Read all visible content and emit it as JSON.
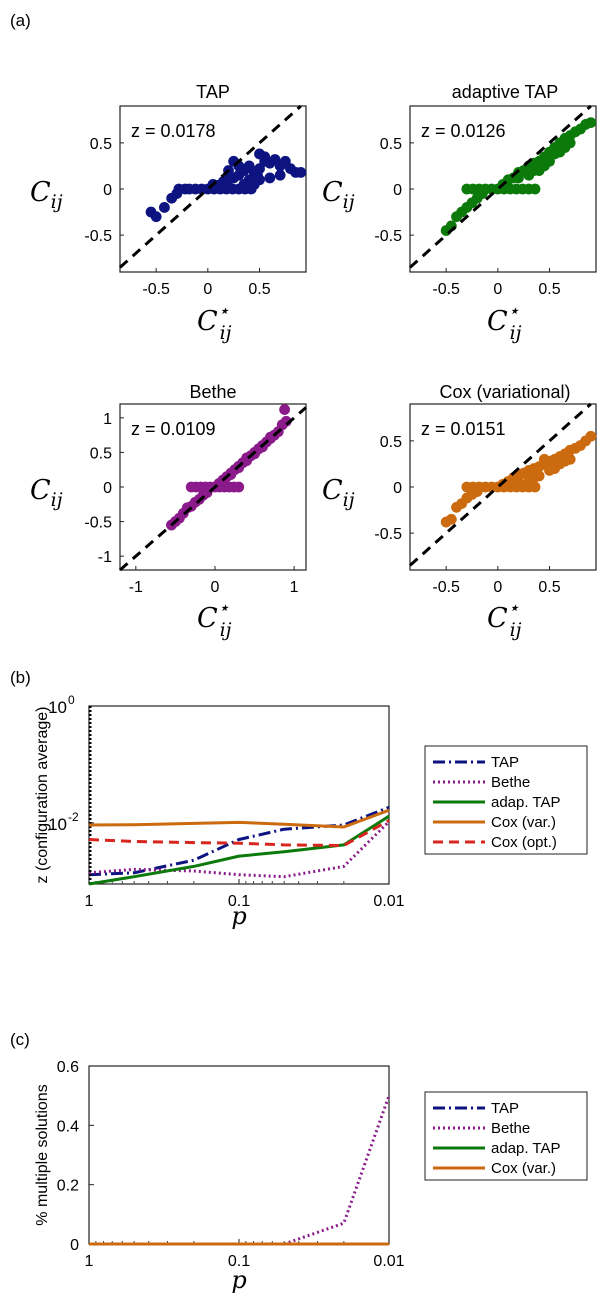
{
  "panel_labels": [
    "(a)",
    "(b)",
    "(c)"
  ],
  "colors": {
    "TAP": "#0d1380",
    "Bethe": "#8b1a8b",
    "adap. TAP": "#0b7a0b",
    "Cox (var.)": "#cc6a0f",
    "Cox (opt.)": "#d8261f"
  },
  "chart_data": [
    {
      "type": "scatter",
      "panel": "a",
      "title": "TAP",
      "annotation": "z = 0.0178",
      "xlabel": "C*ij",
      "ylabel": "Cij",
      "xlim": [
        -0.85,
        0.95
      ],
      "ylim": [
        -0.9,
        0.9
      ],
      "xticks": [
        -0.5,
        0,
        0.5
      ],
      "yticks": [
        -0.5,
        0,
        0.5
      ],
      "color": "#0d1380",
      "points": [
        [
          -0.55,
          -0.25
        ],
        [
          -0.5,
          -0.3
        ],
        [
          -0.42,
          -0.2
        ],
        [
          -0.35,
          -0.1
        ],
        [
          -0.3,
          -0.05
        ],
        [
          -0.28,
          0
        ],
        [
          -0.22,
          0
        ],
        [
          -0.18,
          0
        ],
        [
          -0.12,
          0
        ],
        [
          -0.06,
          0
        ],
        [
          0,
          0
        ],
        [
          0.06,
          0
        ],
        [
          0.12,
          0
        ],
        [
          0.18,
          0
        ],
        [
          0.24,
          0
        ],
        [
          0.3,
          0
        ],
        [
          0.36,
          0
        ],
        [
          0.42,
          0
        ],
        [
          0.05,
          0.05
        ],
        [
          0.1,
          0.04
        ],
        [
          0.15,
          0.08
        ],
        [
          0.2,
          0.1
        ],
        [
          0.25,
          0.12
        ],
        [
          0.3,
          0.15
        ],
        [
          0.35,
          0.2
        ],
        [
          0.4,
          0.25
        ],
        [
          0.45,
          0.18
        ],
        [
          0.5,
          0.22
        ],
        [
          0.55,
          0.3
        ],
        [
          0.6,
          0.28
        ],
        [
          0.65,
          0.32
        ],
        [
          0.7,
          0.25
        ],
        [
          0.75,
          0.3
        ],
        [
          0.8,
          0.22
        ],
        [
          0.85,
          0.18
        ],
        [
          0.9,
          0.18
        ],
        [
          0.5,
          0.38
        ],
        [
          0.55,
          0.35
        ],
        [
          0.25,
          0.3
        ],
        [
          0.3,
          0.25
        ],
        [
          0.45,
          0.05
        ],
        [
          0.5,
          0.1
        ],
        [
          0.6,
          0.12
        ],
        [
          0.7,
          0.15
        ],
        [
          0.4,
          0.1
        ],
        [
          0.2,
          0.2
        ],
        [
          0.35,
          0.05
        ],
        [
          0.48,
          0.15
        ]
      ]
    },
    {
      "type": "scatter",
      "panel": "a",
      "title": "adaptive TAP",
      "annotation": "z = 0.0126",
      "xlabel": "C*ij",
      "ylabel": "Cij",
      "xlim": [
        -0.85,
        0.95
      ],
      "ylim": [
        -0.9,
        0.9
      ],
      "xticks": [
        -0.5,
        0,
        0.5
      ],
      "yticks": [
        -0.5,
        0,
        0.5
      ],
      "color": "#0b7a0b",
      "points": [
        [
          -0.5,
          -0.45
        ],
        [
          -0.45,
          -0.4
        ],
        [
          -0.4,
          -0.3
        ],
        [
          -0.35,
          -0.25
        ],
        [
          -0.3,
          -0.2
        ],
        [
          -0.25,
          -0.15
        ],
        [
          -0.2,
          -0.1
        ],
        [
          -0.15,
          -0.05
        ],
        [
          -0.3,
          0
        ],
        [
          -0.24,
          0
        ],
        [
          -0.18,
          0
        ],
        [
          -0.12,
          0
        ],
        [
          -0.06,
          0
        ],
        [
          0,
          0
        ],
        [
          0.06,
          0
        ],
        [
          0.12,
          0
        ],
        [
          0.18,
          0
        ],
        [
          0.24,
          0
        ],
        [
          0.3,
          0
        ],
        [
          0.36,
          0
        ],
        [
          0.05,
          0.05
        ],
        [
          0.1,
          0.1
        ],
        [
          0.15,
          0.12
        ],
        [
          0.2,
          0.18
        ],
        [
          0.25,
          0.2
        ],
        [
          0.3,
          0.25
        ],
        [
          0.35,
          0.28
        ],
        [
          0.4,
          0.3
        ],
        [
          0.45,
          0.35
        ],
        [
          0.5,
          0.4
        ],
        [
          0.55,
          0.45
        ],
        [
          0.6,
          0.5
        ],
        [
          0.65,
          0.55
        ],
        [
          0.7,
          0.58
        ],
        [
          0.75,
          0.62
        ],
        [
          0.8,
          0.65
        ],
        [
          0.85,
          0.7
        ],
        [
          0.9,
          0.72
        ],
        [
          0.4,
          0.2
        ],
        [
          0.5,
          0.3
        ],
        [
          0.6,
          0.4
        ],
        [
          0.3,
          0.15
        ],
        [
          0.45,
          0.25
        ],
        [
          0.55,
          0.38
        ],
        [
          0.7,
          0.5
        ],
        [
          0.2,
          0.12
        ],
        [
          0.35,
          0.2
        ],
        [
          0.65,
          0.45
        ]
      ]
    },
    {
      "type": "scatter",
      "panel": "a",
      "title": "Bethe",
      "annotation": "z = 0.0109",
      "xlabel": "C*ij",
      "ylabel": "Cij",
      "xlim": [
        -1.2,
        1.15
      ],
      "ylim": [
        -1.2,
        1.2
      ],
      "xticks": [
        -1,
        0,
        1
      ],
      "yticks": [
        -1,
        -0.5,
        0,
        0.5,
        1
      ],
      "color": "#8b1a8b",
      "points": [
        [
          -0.55,
          -0.55
        ],
        [
          -0.5,
          -0.5
        ],
        [
          -0.45,
          -0.45
        ],
        [
          -0.4,
          -0.38
        ],
        [
          -0.35,
          -0.3
        ],
        [
          -0.3,
          -0.28
        ],
        [
          -0.25,
          -0.22
        ],
        [
          -0.2,
          -0.18
        ],
        [
          -0.15,
          -0.12
        ],
        [
          -0.1,
          -0.08
        ],
        [
          -0.3,
          0
        ],
        [
          -0.24,
          0
        ],
        [
          -0.18,
          0
        ],
        [
          -0.12,
          0
        ],
        [
          -0.06,
          0
        ],
        [
          0,
          0
        ],
        [
          0.06,
          0
        ],
        [
          0.12,
          0
        ],
        [
          0.18,
          0
        ],
        [
          0.24,
          0
        ],
        [
          0.3,
          0
        ],
        [
          0.05,
          0.05
        ],
        [
          0.1,
          0.1
        ],
        [
          0.15,
          0.15
        ],
        [
          0.2,
          0.2
        ],
        [
          0.25,
          0.25
        ],
        [
          0.3,
          0.3
        ],
        [
          0.35,
          0.35
        ],
        [
          0.4,
          0.38
        ],
        [
          0.45,
          0.45
        ],
        [
          0.5,
          0.5
        ],
        [
          0.55,
          0.55
        ],
        [
          0.6,
          0.6
        ],
        [
          0.65,
          0.65
        ],
        [
          0.7,
          0.7
        ],
        [
          0.75,
          0.75
        ],
        [
          0.8,
          0.8
        ],
        [
          0.85,
          0.9
        ],
        [
          0.9,
          0.95
        ],
        [
          0.88,
          1.12
        ],
        [
          0.6,
          0.58
        ],
        [
          0.4,
          0.42
        ],
        [
          0.7,
          0.72
        ],
        [
          0.2,
          0.18
        ],
        [
          0.5,
          0.48
        ],
        [
          0.3,
          0.28
        ]
      ]
    },
    {
      "type": "scatter",
      "panel": "a",
      "title": "Cox (variational)",
      "annotation": "z = 0.0151",
      "xlabel": "C*ij",
      "ylabel": "Cij",
      "xlim": [
        -0.85,
        0.95
      ],
      "ylim": [
        -0.9,
        0.9
      ],
      "xticks": [
        -0.5,
        0,
        0.5
      ],
      "yticks": [
        -0.5,
        0,
        0.5
      ],
      "color": "#cc6a0f",
      "points": [
        [
          -0.5,
          -0.38
        ],
        [
          -0.45,
          -0.35
        ],
        [
          -0.4,
          -0.22
        ],
        [
          -0.35,
          -0.18
        ],
        [
          -0.3,
          -0.12
        ],
        [
          -0.25,
          -0.08
        ],
        [
          -0.2,
          -0.05
        ],
        [
          -0.3,
          0
        ],
        [
          -0.24,
          0
        ],
        [
          -0.18,
          0
        ],
        [
          -0.12,
          0
        ],
        [
          -0.06,
          0
        ],
        [
          0,
          0
        ],
        [
          0.06,
          0
        ],
        [
          0.12,
          0
        ],
        [
          0.18,
          0
        ],
        [
          0.24,
          0
        ],
        [
          0.3,
          0
        ],
        [
          0.36,
          0
        ],
        [
          0.05,
          0.03
        ],
        [
          0.1,
          0.06
        ],
        [
          0.15,
          0.1
        ],
        [
          0.2,
          0.12
        ],
        [
          0.25,
          0.15
        ],
        [
          0.3,
          0.18
        ],
        [
          0.35,
          0.2
        ],
        [
          0.4,
          0.22
        ],
        [
          0.45,
          0.25
        ],
        [
          0.5,
          0.28
        ],
        [
          0.55,
          0.3
        ],
        [
          0.6,
          0.33
        ],
        [
          0.65,
          0.36
        ],
        [
          0.7,
          0.4
        ],
        [
          0.75,
          0.42
        ],
        [
          0.8,
          0.45
        ],
        [
          0.85,
          0.5
        ],
        [
          0.9,
          0.55
        ],
        [
          0.4,
          0.12
        ],
        [
          0.5,
          0.18
        ],
        [
          0.6,
          0.25
        ],
        [
          0.45,
          0.3
        ],
        [
          0.3,
          0.08
        ],
        [
          0.55,
          0.2
        ],
        [
          0.7,
          0.3
        ],
        [
          0.2,
          0.05
        ],
        [
          0.35,
          0.1
        ],
        [
          0.65,
          0.28
        ]
      ]
    },
    {
      "type": "line",
      "panel": "b",
      "xscale": "log-reversed",
      "yscale": "log",
      "xlabel": "p",
      "ylabel": "z (configuration average)",
      "xlim": [
        1,
        0.01
      ],
      "ylim": [
        0.0009,
        1
      ],
      "xticklabels": [
        "1",
        "0.1",
        "0.01"
      ],
      "yticklabels": [
        "10^0",
        "10^-2"
      ],
      "x": [
        1,
        0.5,
        0.2,
        0.1,
        0.05,
        0.02,
        0.01
      ],
      "legend_position": "right",
      "series": [
        {
          "name": "TAP",
          "values": [
            0.0013,
            0.0014,
            0.0023,
            0.0052,
            0.0078,
            0.0092,
            0.0185
          ]
        },
        {
          "name": "Bethe",
          "values": [
            0.0014,
            0.0016,
            0.0015,
            0.0013,
            0.0012,
            0.0018,
            0.0105
          ],
          "vertical_at_x1": [
            0.0009,
            1
          ]
        },
        {
          "name": "adap. TAP",
          "values": [
            0.0009,
            0.0012,
            0.0018,
            0.0027,
            0.0032,
            0.0042,
            0.013
          ]
        },
        {
          "name": "Cox (var.)",
          "values": [
            0.0092,
            0.0093,
            0.0098,
            0.0102,
            0.0095,
            0.0085,
            0.0165
          ]
        },
        {
          "name": "Cox (opt.)",
          "values": [
            0.0052,
            0.0048,
            0.0046,
            0.0045,
            0.0042,
            0.0041,
            0.011
          ]
        }
      ]
    },
    {
      "type": "line",
      "panel": "c",
      "xscale": "log-reversed",
      "xlabel": "p",
      "ylabel": "% multiple solutions",
      "xlim": [
        1,
        0.01
      ],
      "ylim": [
        0,
        0.6
      ],
      "xticklabels": [
        "1",
        "0.1",
        "0.01"
      ],
      "yticklabels": [
        "0",
        "0.2",
        "0.4",
        "0.6"
      ],
      "x": [
        1,
        0.5,
        0.2,
        0.1,
        0.05,
        0.02,
        0.01
      ],
      "legend_position": "right",
      "series": [
        {
          "name": "TAP",
          "values": [
            0,
            0,
            0,
            0,
            0,
            0,
            0
          ]
        },
        {
          "name": "Bethe",
          "values": [
            0,
            0,
            0,
            0,
            0,
            0.07,
            0.5
          ]
        },
        {
          "name": "adap. TAP",
          "values": [
            0,
            0,
            0,
            0,
            0,
            0,
            0
          ]
        },
        {
          "name": "Cox (var.)",
          "values": [
            0,
            0,
            0,
            0,
            0,
            0,
            0
          ]
        }
      ]
    }
  ]
}
